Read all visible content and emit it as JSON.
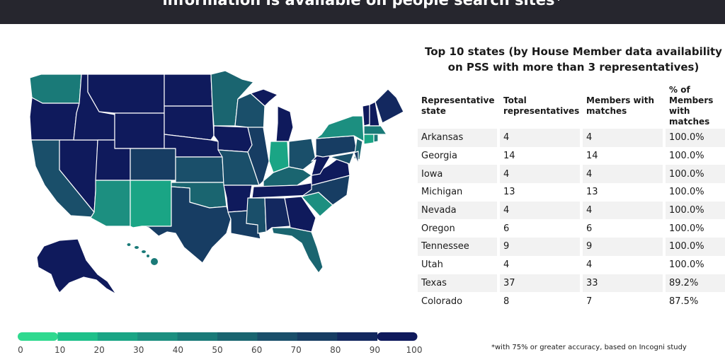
{
  "header": {
    "title": "information is available on people search sites*"
  },
  "colors": {
    "c100": "#0f1a5c",
    "c90": "#13285f",
    "c80": "#173d63",
    "c70": "#1a4f6a",
    "c60": "#1a6570",
    "c50": "#1a7a78",
    "c40": "#1c8f80",
    "c30": "#1aa585",
    "c20": "#1ec08a",
    "c10": "#2fd98f"
  },
  "table": {
    "title_line1": "Top 10 states (by House Member data availability",
    "title_line2": "on PSS with more than 3 representatives)",
    "headers": [
      "Representative state",
      "Total representatives",
      "Members with matches",
      "% of Members with matches"
    ]
  },
  "chart_data": {
    "type": "table",
    "title": "Top 10 states (by House Member data availability on PSS with more than 3 representatives)",
    "columns": [
      "Representative state",
      "Total representatives",
      "Members with matches",
      "% of Members with matches"
    ],
    "rows": [
      {
        "state": "Arkansas",
        "total": "4",
        "matches": "4",
        "pct": "100.0%"
      },
      {
        "state": "Georgia",
        "total": "14",
        "matches": "14",
        "pct": "100.0%"
      },
      {
        "state": "Iowa",
        "total": "4",
        "matches": "4",
        "pct": "100.0%"
      },
      {
        "state": "Michigan",
        "total": "13",
        "matches": "13",
        "pct": "100.0%"
      },
      {
        "state": "Nevada",
        "total": "4",
        "matches": "4",
        "pct": "100.0%"
      },
      {
        "state": "Oregon",
        "total": "6",
        "matches": "6",
        "pct": "100.0%"
      },
      {
        "state": "Tennessee",
        "total": "9",
        "matches": "9",
        "pct": "100.0%"
      },
      {
        "state": "Utah",
        "total": "4",
        "matches": "4",
        "pct": "100.0%"
      },
      {
        "state": "Texas",
        "total": "37",
        "matches": "33",
        "pct": "89.2%"
      },
      {
        "state": "Colorado",
        "total": "8",
        "matches": "7",
        "pct": "87.5%"
      }
    ]
  },
  "legend": {
    "ticks": [
      "0",
      "10",
      "20",
      "30",
      "40",
      "50",
      "60",
      "70",
      "80",
      "90",
      "100"
    ]
  },
  "footnote": "*with 75% or greater accuracy, based on Incogni study"
}
